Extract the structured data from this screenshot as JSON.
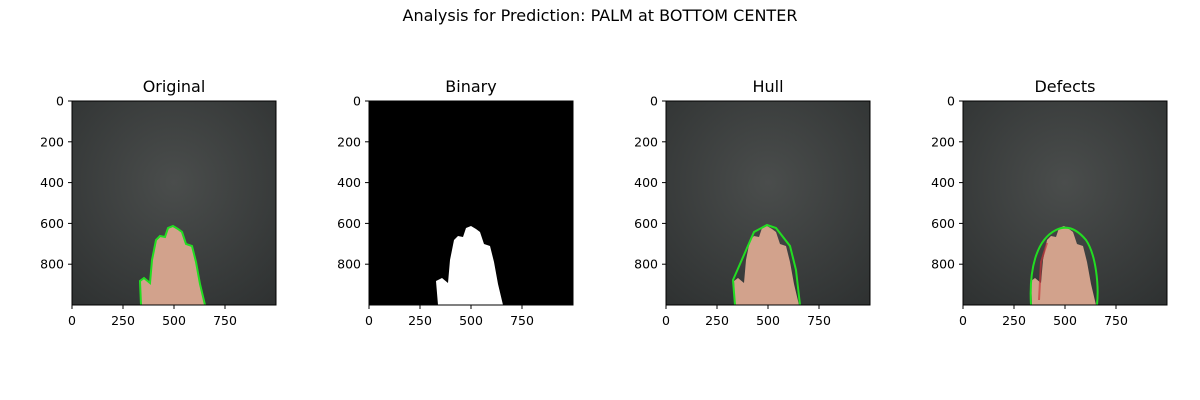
{
  "suptitle": "Analysis for Prediction: PALM at BOTTOM CENTER",
  "panels": [
    {
      "title": "Original",
      "image": "photo-with-contour"
    },
    {
      "title": "Binary",
      "image": "binary-mask"
    },
    {
      "title": "Hull",
      "image": "photo-with-convex-hull"
    },
    {
      "title": "Defects",
      "image": "photo-with-defect-hull"
    }
  ],
  "axes": {
    "x_ticks": [
      "0",
      "250",
      "500",
      "750"
    ],
    "y_ticks": [
      "0",
      "200",
      "400",
      "600",
      "800"
    ],
    "xlim": [
      0,
      1000
    ],
    "ylim": [
      1000,
      0
    ]
  },
  "colors": {
    "board_dark": "#2f3232",
    "board_light": "#4a4d4c",
    "contour": "#22dd22",
    "skin": "#d2a28c",
    "mask": "#ffffff",
    "background_mask": "#000000"
  }
}
